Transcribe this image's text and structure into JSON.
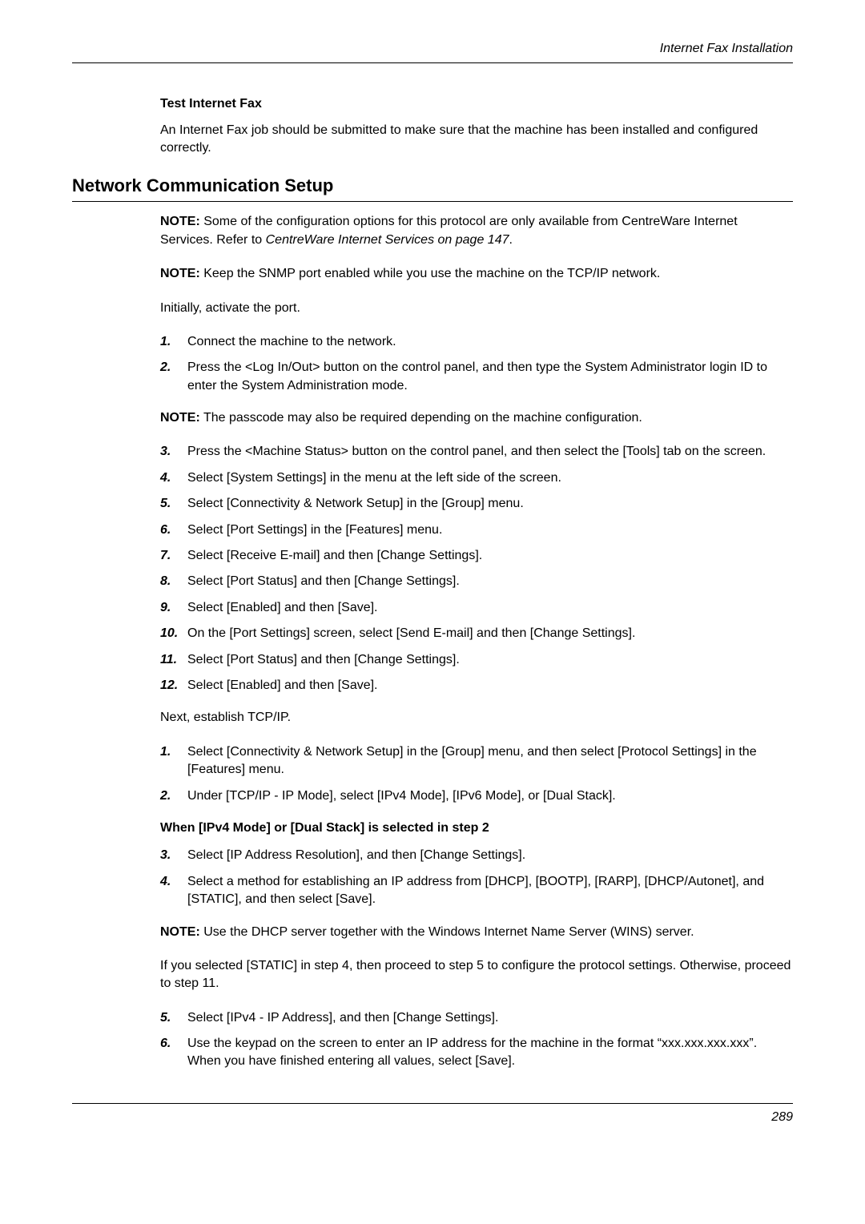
{
  "header": {
    "title": "Internet Fax Installation"
  },
  "section_test": {
    "heading": "Test Internet Fax",
    "body": "An Internet Fax job should be submitted to make sure that the machine has been installed and configured correctly."
  },
  "h2": "Network Communication Setup",
  "note1": {
    "label": "NOTE:",
    "body": " Some of the configuration options for this protocol are only available from CentreWare Internet Services. Refer to ",
    "link": "CentreWare Internet Services on page 147",
    "tail": "."
  },
  "note2": {
    "label": "NOTE:",
    "body": " Keep the SNMP port enabled while you use the machine on the TCP/IP network."
  },
  "initially": "Initially, activate the port.",
  "steps1": [
    {
      "n": "1.",
      "t": "Connect the machine to the network."
    },
    {
      "n": "2.",
      "t": "Press the <Log In/Out> button on the control panel, and then type the System Administrator login ID to enter the System Administration mode."
    }
  ],
  "note3": {
    "label": "NOTE:",
    "body": " The passcode may also be required depending on the machine configuration."
  },
  "steps2": [
    {
      "n": "3.",
      "t": "Press the <Machine Status> button on the control panel, and then select the [Tools] tab on the screen."
    },
    {
      "n": "4.",
      "t": "Select [System Settings] in the menu at the left side of the screen."
    },
    {
      "n": "5.",
      "t": "Select [Connectivity & Network Setup] in the [Group] menu."
    },
    {
      "n": "6.",
      "t": "Select [Port Settings] in the [Features] menu."
    },
    {
      "n": "7.",
      "t": "Select [Receive E-mail] and then [Change Settings]."
    },
    {
      "n": "8.",
      "t": "Select [Port Status] and then [Change Settings]."
    },
    {
      "n": "9.",
      "t": "Select [Enabled] and then [Save]."
    },
    {
      "n": "10.",
      "t": "On the [Port Settings] screen, select [Send E-mail] and then [Change Settings]."
    },
    {
      "n": "11.",
      "t": "Select [Port Status] and then [Change Settings]."
    },
    {
      "n": "12.",
      "t": "Select [Enabled] and then [Save]."
    }
  ],
  "next": "Next, establish TCP/IP.",
  "steps3": [
    {
      "n": "1.",
      "t": "Select [Connectivity & Network Setup] in the [Group] menu, and then select [Protocol Settings] in the [Features] menu."
    },
    {
      "n": "2.",
      "t": "Under [TCP/IP - IP Mode], select [IPv4 Mode], [IPv6 Mode], or [Dual Stack]."
    }
  ],
  "when_heading": "When [IPv4 Mode] or [Dual Stack] is selected in step 2",
  "steps4": [
    {
      "n": "3.",
      "t": "Select [IP Address Resolution], and then [Change Settings]."
    },
    {
      "n": "4.",
      "t": "Select a method for establishing an IP address from [DHCP], [BOOTP], [RARP], [DHCP/Autonet], and [STATIC], and then select [Save]."
    }
  ],
  "note4": {
    "label": "NOTE:",
    "body": " Use the DHCP server together with the Windows Internet Name Server (WINS) server."
  },
  "ifpara": "If you selected [STATIC] in step 4, then proceed to step 5 to configure the protocol settings. Otherwise, proceed to step 11.",
  "steps5": [
    {
      "n": "5.",
      "t": "Select [IPv4 - IP Address], and then [Change Settings]."
    },
    {
      "n": "6.",
      "t": "Use the keypad on the screen to enter an IP address for the machine in the format “xxx.xxx.xxx.xxx”. When you have finished entering all values, select [Save]."
    }
  ],
  "footer": {
    "page": "289"
  }
}
